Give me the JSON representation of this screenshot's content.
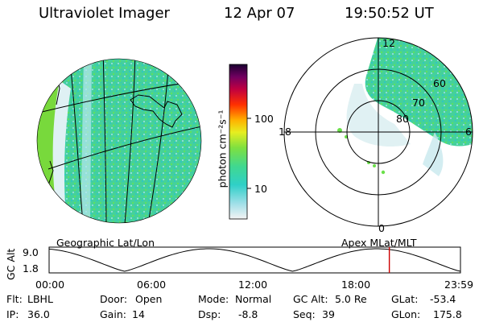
{
  "header": {
    "title": "Ultraviolet Imager",
    "date": "12 Apr 07",
    "time": "19:50:52 UT"
  },
  "colorbar": {
    "unit_label": "photon cm⁻²s⁻¹",
    "ticks": [
      "100",
      "10"
    ]
  },
  "geographic_panel": {
    "label": "Geographic Lat/Lon"
  },
  "polar_panel": {
    "label": "Apex MLat/MLT",
    "mlt_labels": [
      "12",
      "18",
      "6",
      "0"
    ],
    "lat_labels": [
      "60",
      "70",
      "80"
    ]
  },
  "altitude_plot": {
    "ylabel": "GC Alt",
    "y_ticks": [
      "9.0",
      "1.8"
    ],
    "x_ticks": [
      "00:00",
      "06:00",
      "12:00",
      "18:00",
      "23:59"
    ],
    "current_time_hours": 19.85,
    "marker_color": "#cc0000"
  },
  "footer": {
    "row1": [
      {
        "label": "Flt:",
        "value": "LBHL"
      },
      {
        "label": "Door:",
        "value": "Open"
      },
      {
        "label": "Mode:",
        "value": "Normal"
      },
      {
        "label": "GC Alt:",
        "value": "5.0 Re"
      },
      {
        "label": "GLat:",
        "value": "-53.4"
      }
    ],
    "row2": [
      {
        "label": "IP:",
        "value": "36.0"
      },
      {
        "label": "Gain:",
        "value": "14"
      },
      {
        "label": "Dsp:",
        "value": "-8.8"
      },
      {
        "label": "Seq:",
        "value": "39"
      },
      {
        "label": "GLon:",
        "value": "175.8"
      }
    ]
  }
}
